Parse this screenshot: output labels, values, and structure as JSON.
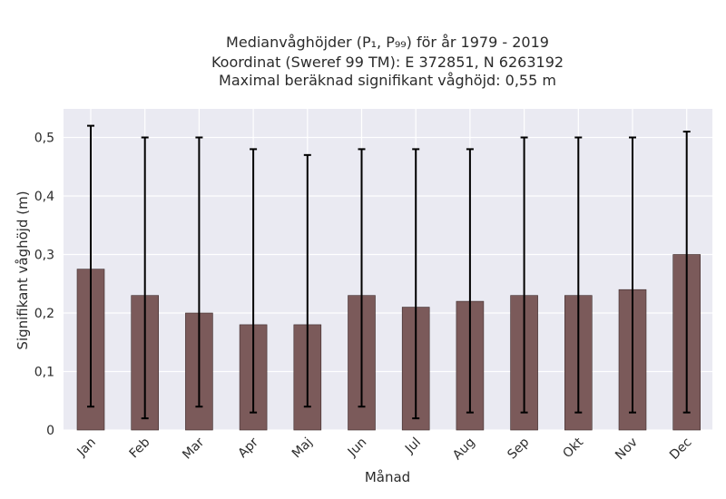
{
  "chart_data": {
    "type": "bar",
    "title_lines": [
      "Medianvåghöjder (P₁, P₉₉) för år 1979 - 2019",
      "Koordinat (Sweref 99 TM): E 372851, N 6263192",
      "Maximal beräknad signifikant våghöjd: 0,55 m"
    ],
    "xlabel": "Månad",
    "ylabel": "Signifikant våghöjd (m)",
    "categories": [
      "Jan",
      "Feb",
      "Mar",
      "Apr",
      "Maj",
      "Jun",
      "Jul",
      "Aug",
      "Sep",
      "Okt",
      "Nov",
      "Dec"
    ],
    "values": [
      0.275,
      0.23,
      0.2,
      0.18,
      0.18,
      0.23,
      0.21,
      0.22,
      0.23,
      0.23,
      0.24,
      0.3
    ],
    "error_low": [
      0.04,
      0.02,
      0.04,
      0.03,
      0.04,
      0.04,
      0.02,
      0.03,
      0.03,
      0.03,
      0.03,
      0.03
    ],
    "error_high": [
      0.52,
      0.5,
      0.5,
      0.48,
      0.47,
      0.48,
      0.48,
      0.48,
      0.5,
      0.5,
      0.5,
      0.51
    ],
    "ylim": [
      0,
      0.55
    ],
    "yticks": [
      0,
      0.1,
      0.2,
      0.3,
      0.4,
      0.5
    ],
    "ytick_labels": [
      "0",
      "0,1",
      "0,2",
      "0,3",
      "0,4",
      "0,5"
    ],
    "grid": true,
    "colors": {
      "bar": "#7b5a5a",
      "bar_edge": "#3e2c2c",
      "error": "#000000",
      "plot_background": "#eaeaf2",
      "grid": "#ffffff"
    }
  }
}
